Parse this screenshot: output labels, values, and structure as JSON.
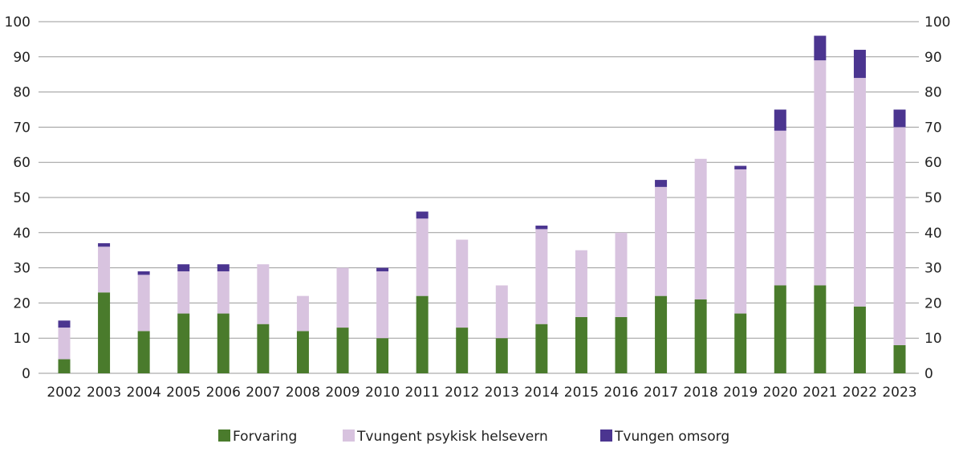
{
  "chart_data": {
    "type": "bar",
    "stacked": true,
    "categories": [
      "2002",
      "2003",
      "2004",
      "2005",
      "2006",
      "2007",
      "2008",
      "2009",
      "2010",
      "2011",
      "2012",
      "2013",
      "2014",
      "2015",
      "2016",
      "2017",
      "2018",
      "2019",
      "2020",
      "2021",
      "2022",
      "2023"
    ],
    "series": [
      {
        "name": "Forvaring",
        "color": "#4a7b2c",
        "values": [
          4,
          23,
          12,
          17,
          17,
          14,
          12,
          13,
          10,
          22,
          13,
          10,
          14,
          16,
          16,
          22,
          21,
          17,
          25,
          25,
          19,
          8
        ]
      },
      {
        "name": "Tvungent psykisk helsevern",
        "color": "#d8c3df",
        "values": [
          9,
          13,
          16,
          12,
          12,
          17,
          10,
          17,
          19,
          22,
          25,
          15,
          27,
          19,
          24,
          31,
          40,
          41,
          44,
          64,
          65,
          62
        ]
      },
      {
        "name": "Tvungen omsorg",
        "color": "#4b3590",
        "values": [
          2,
          1,
          1,
          2,
          2,
          0,
          0,
          0,
          1,
          2,
          0,
          0,
          1,
          0,
          0,
          2,
          0,
          1,
          6,
          7,
          8,
          5
        ]
      }
    ],
    "ylim": [
      0,
      100
    ],
    "yticks": [
      0,
      10,
      20,
      30,
      40,
      50,
      60,
      70,
      80,
      90,
      100
    ],
    "y_axis_both_sides": true,
    "grid": true,
    "legend_position": "bottom"
  }
}
